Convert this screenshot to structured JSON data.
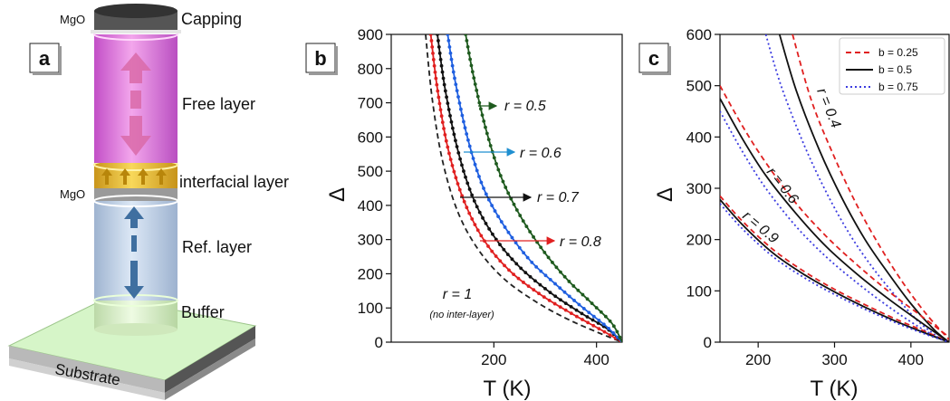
{
  "panel_a": {
    "letter": "a",
    "labels": {
      "mgo_top": "MgO",
      "capping": "Capping",
      "free_layer": "Free layer",
      "interfacial_layer": "interfacial layer",
      "mgo_mid": "MgO",
      "ref_layer": "Ref. layer",
      "buffer": "Buffer",
      "substrate": "Substrate"
    },
    "colors": {
      "capping": "#3a3a3a",
      "free_layer": "#e88be0",
      "interfacial": "#f2c230",
      "ref_layer": "#b9cde6",
      "buffer": "#d8f3c0",
      "substrate": "#c8f0b8",
      "arrow_free": "#d96aa8",
      "arrow_ref": "#3f6fa0"
    }
  },
  "panel_b": {
    "letter": "b",
    "annotations": {
      "r05": "r = 0.5",
      "r06": "r = 0.6",
      "r07": "r = 0.7",
      "r08": "r = 0.8",
      "r1": "r = 1",
      "r1_sub": "(no inter-layer)"
    }
  },
  "panel_c": {
    "letter": "c",
    "annotations": {
      "r04": "r = 0.4",
      "r06": "r = 0.6",
      "r09": "r = 0.9"
    }
  },
  "chart_data": [
    {
      "type": "line",
      "xlabel": "T (K)",
      "ylabel": "Δ",
      "xlim": [
        0,
        450
      ],
      "ylim": [
        0,
        900
      ],
      "xticks": [
        200,
        400
      ],
      "yticks": [
        0,
        100,
        200,
        300,
        400,
        500,
        600,
        700,
        800,
        900
      ],
      "grid": false,
      "series": [
        {
          "name": "r = 1",
          "color": "#222222",
          "dash": "dashed",
          "markers": false,
          "x": [
            67,
            80,
            100,
            130,
            170,
            220,
            280,
            340,
            400,
            450
          ],
          "y": [
            900,
            710,
            530,
            380,
            270,
            185,
            120,
            70,
            30,
            0
          ]
        },
        {
          "name": "r = 0.8",
          "color": "#e02020",
          "dash": "solid",
          "markers": true,
          "x": [
            77,
            90,
            110,
            140,
            180,
            230,
            290,
            350,
            410,
            450
          ],
          "y": [
            900,
            740,
            570,
            420,
            300,
            210,
            140,
            85,
            35,
            0
          ]
        },
        {
          "name": "r = 0.7",
          "color": "#111111",
          "dash": "solid",
          "markers": true,
          "x": [
            90,
            105,
            130,
            160,
            200,
            250,
            310,
            370,
            420,
            450
          ],
          "y": [
            900,
            740,
            560,
            420,
            310,
            220,
            145,
            85,
            40,
            0
          ]
        },
        {
          "name": "r = 0.6",
          "color": "#1f5fe0",
          "dash": "solid",
          "markers": true,
          "x": [
            110,
            125,
            150,
            180,
            220,
            270,
            320,
            370,
            420,
            450
          ],
          "y": [
            900,
            760,
            590,
            450,
            340,
            240,
            170,
            105,
            45,
            0
          ]
        },
        {
          "name": "r = 0.5",
          "color": "#1e5a1e",
          "dash": "solid",
          "markers": true,
          "x": [
            145,
            160,
            185,
            215,
            255,
            300,
            345,
            390,
            430,
            450
          ],
          "y": [
            900,
            780,
            620,
            480,
            360,
            260,
            180,
            115,
            55,
            0
          ]
        }
      ]
    },
    {
      "type": "line",
      "xlabel": "T (K)",
      "ylabel": "Δ",
      "xlim": [
        150,
        450
      ],
      "ylim": [
        0,
        600
      ],
      "xticks": [
        200,
        300,
        400
      ],
      "yticks": [
        0,
        100,
        200,
        300,
        400,
        500,
        600
      ],
      "grid": false,
      "legend": "top-right",
      "legend_entries": [
        {
          "name": "b = 0.25",
          "color": "#e02020",
          "dash": "dashed"
        },
        {
          "name": "b = 0.5",
          "color": "#111111",
          "dash": "solid"
        },
        {
          "name": "b = 0.75",
          "color": "#3b3be0",
          "dash": "dotted"
        }
      ],
      "series": [
        {
          "r": 0.4,
          "b": 0.25,
          "color": "#e02020",
          "dash": "dashed",
          "x": [
            245,
            270,
            300,
            330,
            360,
            390,
            420,
            450
          ],
          "y": [
            600,
            470,
            360,
            265,
            185,
            115,
            55,
            5
          ]
        },
        {
          "r": 0.4,
          "b": 0.5,
          "color": "#111111",
          "dash": "solid",
          "x": [
            228,
            250,
            280,
            310,
            340,
            370,
            400,
            430,
            450
          ],
          "y": [
            600,
            490,
            375,
            280,
            200,
            135,
            75,
            25,
            0
          ]
        },
        {
          "r": 0.4,
          "b": 0.75,
          "color": "#3b3be0",
          "dash": "dotted",
          "x": [
            210,
            230,
            260,
            290,
            320,
            350,
            380,
            410,
            440
          ],
          "y": [
            600,
            500,
            385,
            290,
            210,
            145,
            90,
            40,
            5
          ]
        },
        {
          "r": 0.6,
          "b": 0.25,
          "color": "#e02020",
          "dash": "dashed",
          "x": [
            150,
            180,
            210,
            250,
            290,
            330,
            370,
            410,
            450
          ],
          "y": [
            500,
            420,
            350,
            270,
            205,
            150,
            100,
            55,
            10
          ]
        },
        {
          "r": 0.6,
          "b": 0.5,
          "color": "#111111",
          "dash": "solid",
          "x": [
            150,
            180,
            210,
            250,
            290,
            330,
            370,
            410,
            450
          ],
          "y": [
            475,
            395,
            325,
            250,
            185,
            132,
            85,
            42,
            0
          ]
        },
        {
          "r": 0.6,
          "b": 0.75,
          "color": "#3b3be0",
          "dash": "dotted",
          "x": [
            150,
            180,
            210,
            250,
            290,
            330,
            370,
            410,
            440
          ],
          "y": [
            450,
            370,
            300,
            225,
            165,
            115,
            70,
            30,
            5
          ]
        },
        {
          "r": 0.9,
          "b": 0.25,
          "color": "#e02020",
          "dash": "dashed",
          "x": [
            150,
            180,
            220,
            260,
            300,
            340,
            380,
            420,
            450
          ],
          "y": [
            285,
            235,
            180,
            138,
            103,
            73,
            45,
            20,
            0
          ]
        },
        {
          "r": 0.9,
          "b": 0.5,
          "color": "#111111",
          "dash": "solid",
          "x": [
            150,
            180,
            220,
            260,
            300,
            340,
            380,
            420,
            450
          ],
          "y": [
            278,
            228,
            173,
            132,
            98,
            68,
            41,
            17,
            0
          ]
        },
        {
          "r": 0.9,
          "b": 0.75,
          "color": "#3b3be0",
          "dash": "dotted",
          "x": [
            150,
            180,
            220,
            260,
            300,
            340,
            380,
            420,
            450
          ],
          "y": [
            270,
            220,
            166,
            126,
            93,
            64,
            38,
            15,
            0
          ]
        }
      ]
    }
  ]
}
